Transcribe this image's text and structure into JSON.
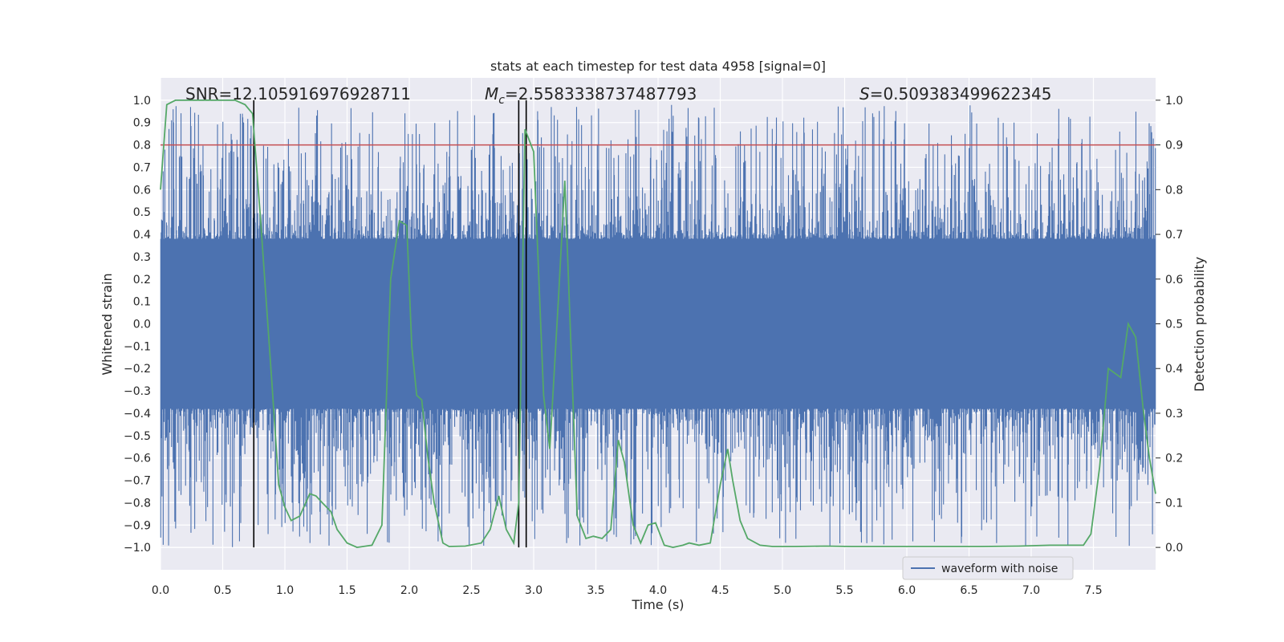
{
  "chart_data": {
    "type": "line",
    "title": "stats at each timestep for test data 4958 [signal=0]",
    "xlabel": "Time (s)",
    "ylabel_left": "Whitened strain",
    "ylabel_right": "Detection probability",
    "xlim": [
      0.0,
      8.0
    ],
    "ylim_left": [
      -1.1,
      1.1
    ],
    "ylim_right": [
      -0.05,
      1.05
    ],
    "x_ticks": [
      0.0,
      0.5,
      1.0,
      1.5,
      2.0,
      2.5,
      3.0,
      3.5,
      4.0,
      4.5,
      5.0,
      5.5,
      6.0,
      6.5,
      7.0,
      7.5
    ],
    "x_tick_labels": [
      "0.0",
      "0.5",
      "1.0",
      "1.5",
      "2.0",
      "2.5",
      "3.0",
      "3.5",
      "4.0",
      "4.5",
      "5.0",
      "5.5",
      "6.0",
      "6.5",
      "7.0",
      "7.5"
    ],
    "y_left_ticks": [
      1.0,
      0.9,
      0.8,
      0.7,
      0.6,
      0.5,
      0.4,
      0.3,
      0.2,
      0.1,
      0.0,
      -0.1,
      -0.2,
      -0.3,
      -0.4,
      -0.5,
      -0.6,
      -0.7,
      -0.8,
      -0.9,
      -1.0
    ],
    "y_left_tick_labels": [
      "1.0",
      "0.9",
      "0.8",
      "0.7",
      "0.6",
      "0.5",
      "0.4",
      "0.3",
      "0.2",
      "0.1",
      "0.0",
      "−0.1",
      "−0.2",
      "−0.3",
      "−0.4",
      "−0.5",
      "−0.6",
      "−0.7",
      "−0.8",
      "−0.9",
      "−1.0"
    ],
    "y_right_ticks": [
      1.0,
      0.9,
      0.8,
      0.7,
      0.6,
      0.5,
      0.4,
      0.3,
      0.2,
      0.1,
      0.0
    ],
    "y_right_tick_labels": [
      "1.0",
      "0.9",
      "0.8",
      "0.7",
      "0.6",
      "0.5",
      "0.4",
      "0.3",
      "0.2",
      "0.1",
      "0.0"
    ],
    "grid": true,
    "legend": {
      "position": "bottom-right",
      "entries": [
        "waveform with noise"
      ]
    },
    "annotations": {
      "snr": "SNR=12.105916976928711",
      "mc_symbol": "M",
      "mc_sub": "c",
      "mc_value": "=2.5583338737487793",
      "s_symbol": "S",
      "s_value": "=0.509383499622345"
    },
    "threshold": {
      "axis": "right",
      "value": 0.9
    },
    "vertical_markers": [
      0.75,
      2.88,
      2.94
    ],
    "series": [
      {
        "name": "waveform with noise",
        "axis": "left",
        "kind": "noise",
        "duration": 8.0,
        "sample_rate": 2048,
        "core_amplitude": 0.38,
        "peak_max": 0.98,
        "peak_min": -1.0
      },
      {
        "name": "detection probability",
        "axis": "right",
        "x": [
          0.0,
          0.05,
          0.12,
          0.2,
          0.3,
          0.4,
          0.5,
          0.6,
          0.68,
          0.74,
          0.8,
          0.85,
          0.9,
          0.95,
          1.0,
          1.05,
          1.12,
          1.2,
          1.25,
          1.3,
          1.37,
          1.42,
          1.5,
          1.58,
          1.7,
          1.78,
          1.85,
          1.92,
          1.98,
          2.02,
          2.06,
          2.1,
          2.15,
          2.2,
          2.27,
          2.32,
          2.45,
          2.58,
          2.65,
          2.72,
          2.78,
          2.84,
          2.88,
          2.93,
          3.0,
          3.08,
          3.13,
          3.2,
          3.25,
          3.3,
          3.35,
          3.42,
          3.48,
          3.55,
          3.62,
          3.68,
          3.73,
          3.8,
          3.86,
          3.92,
          3.98,
          4.05,
          4.12,
          4.2,
          4.25,
          4.33,
          4.42,
          4.5,
          4.56,
          4.6,
          4.66,
          4.72,
          4.82,
          4.92,
          5.1,
          5.35,
          5.55,
          5.7,
          5.85,
          6.0,
          6.3,
          6.6,
          6.9,
          7.15,
          7.3,
          7.42,
          7.48,
          7.55,
          7.62,
          7.67,
          7.72,
          7.78,
          7.84,
          7.9,
          7.95,
          8.0
        ],
        "y": [
          0.8,
          0.99,
          1.0,
          1.0,
          1.0,
          1.0,
          1.0,
          1.0,
          0.99,
          0.97,
          0.75,
          0.55,
          0.35,
          0.14,
          0.09,
          0.06,
          0.07,
          0.12,
          0.115,
          0.1,
          0.08,
          0.04,
          0.01,
          0.0,
          0.005,
          0.05,
          0.6,
          0.73,
          0.72,
          0.45,
          0.34,
          0.33,
          0.2,
          0.1,
          0.01,
          0.002,
          0.003,
          0.01,
          0.04,
          0.115,
          0.04,
          0.01,
          0.1,
          0.935,
          0.885,
          0.34,
          0.22,
          0.56,
          0.82,
          0.45,
          0.07,
          0.02,
          0.025,
          0.02,
          0.04,
          0.24,
          0.19,
          0.05,
          0.01,
          0.05,
          0.055,
          0.005,
          0.0,
          0.005,
          0.01,
          0.005,
          0.01,
          0.14,
          0.22,
          0.15,
          0.06,
          0.02,
          0.005,
          0.002,
          0.002,
          0.003,
          0.002,
          0.002,
          0.002,
          0.002,
          0.002,
          0.002,
          0.003,
          0.005,
          0.005,
          0.005,
          0.03,
          0.18,
          0.4,
          0.39,
          0.38,
          0.5,
          0.47,
          0.31,
          0.2,
          0.12
        ]
      }
    ],
    "colors": {
      "plot_bg": "#eaeaf2",
      "grid": "#ffffff",
      "waveform": "#4c72b0",
      "probability": "#55a868",
      "threshold": "#c44e52",
      "marker": "#000000",
      "text": "#262626"
    }
  }
}
